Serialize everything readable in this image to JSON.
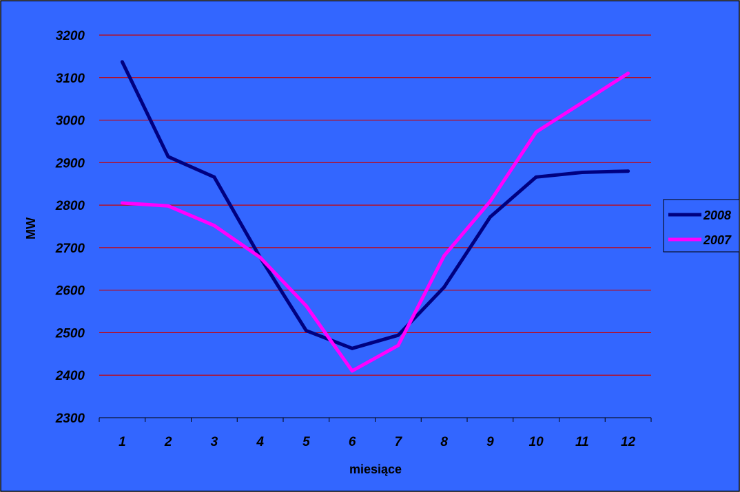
{
  "colors": {
    "background": "#3366FF",
    "gridline": "#CC0000",
    "axis": "#000000",
    "series_2008": "#000080",
    "series_2007": "#FF00FF"
  },
  "chart_data": {
    "type": "line",
    "title": "",
    "xlabel": "miesiące",
    "ylabel": "MW",
    "categories": [
      "1",
      "2",
      "3",
      "4",
      "5",
      "6",
      "7",
      "8",
      "9",
      "10",
      "11",
      "12"
    ],
    "ylim": [
      2300,
      3200
    ],
    "yticks": [
      "2300",
      "2400",
      "2500",
      "2600",
      "2700",
      "2800",
      "2900",
      "3000",
      "3100",
      "3200"
    ],
    "grid": true,
    "legend_position": "right",
    "series": [
      {
        "name": "2008",
        "color": "#000080",
        "values": [
          3137,
          2914,
          2866,
          2677,
          2505,
          2463,
          2494,
          2607,
          2772,
          2866,
          2877,
          2880
        ]
      },
      {
        "name": "2007",
        "color": "#FF00FF",
        "values": [
          2805,
          2798,
          2752,
          2677,
          2563,
          2410,
          2470,
          2681,
          2809,
          2972,
          3041,
          3110
        ]
      }
    ]
  }
}
